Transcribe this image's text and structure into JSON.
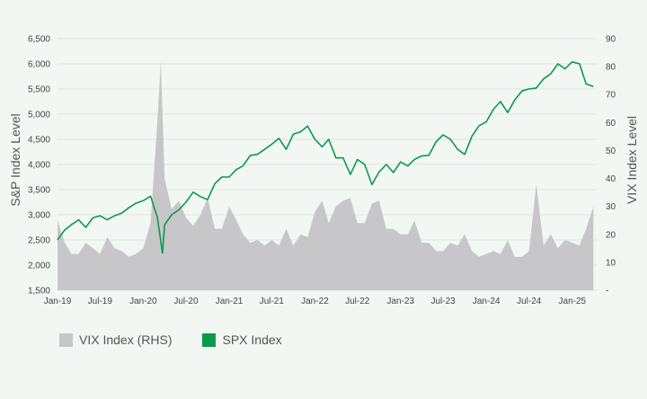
{
  "colors": {
    "background": "#f2f7f3",
    "spx": "#0a9b48",
    "vix": "#c7c7c9",
    "grid": "#dde6df"
  },
  "chart_data": {
    "type": "line",
    "title": "",
    "x_ticks": [
      "Jan-19",
      "Jul-19",
      "Jan-20",
      "Jul-20",
      "Jan-21",
      "Jul-21",
      "Jan-22",
      "Jul-22",
      "Jan-23",
      "Jul-23",
      "Jan-24",
      "Jul-24",
      "Jan-25"
    ],
    "left_axis": {
      "label": "S&P Index Level",
      "ylim": [
        1500,
        6500
      ],
      "ticks": [
        "1,500",
        "2,000",
        "2,500",
        "3,000",
        "3,500",
        "4,000",
        "4,500",
        "5,000",
        "5,500",
        "6,000",
        "6,500"
      ]
    },
    "right_axis": {
      "label": "VIX Index Level",
      "ylim": [
        0,
        90
      ],
      "ticks": [
        "-",
        "10",
        "20",
        "30",
        "40",
        "50",
        "60",
        "70",
        "80",
        "90"
      ]
    },
    "grid": true,
    "legend_position": "bottom-left",
    "series": [
      {
        "name": "VIX Index (RHS)",
        "type": "area",
        "axis": "right",
        "x": [
          "2019-01",
          "2019-02",
          "2019-03",
          "2019-04",
          "2019-05",
          "2019-06",
          "2019-07",
          "2019-08",
          "2019-09",
          "2019-10",
          "2019-11",
          "2019-12",
          "2020-01",
          "2020-02",
          "2020-03-01",
          "2020-03-16",
          "2020-04",
          "2020-05",
          "2020-06",
          "2020-07",
          "2020-08",
          "2020-09",
          "2020-10",
          "2020-11",
          "2020-12",
          "2021-01",
          "2021-02",
          "2021-03",
          "2021-04",
          "2021-05",
          "2021-06",
          "2021-07",
          "2021-08",
          "2021-09",
          "2021-10",
          "2021-11",
          "2021-12",
          "2022-01",
          "2022-02",
          "2022-03",
          "2022-04",
          "2022-05",
          "2022-06",
          "2022-07",
          "2022-08",
          "2022-09",
          "2022-10",
          "2022-11",
          "2022-12",
          "2023-01",
          "2023-02",
          "2023-03",
          "2023-04",
          "2023-05",
          "2023-06",
          "2023-07",
          "2023-08",
          "2023-09",
          "2023-10",
          "2023-11",
          "2023-12",
          "2024-01",
          "2024-02",
          "2024-03",
          "2024-04",
          "2024-05",
          "2024-06",
          "2024-07",
          "2024-08",
          "2024-09",
          "2024-10",
          "2024-11",
          "2024-12",
          "2025-01",
          "2025-02",
          "2025-03",
          "2025-04"
        ],
        "values": [
          25,
          17,
          13,
          13,
          17,
          15,
          13,
          19,
          15,
          14,
          12,
          13,
          15,
          24,
          60,
          82,
          40,
          29,
          32,
          26,
          23,
          27,
          33,
          22,
          22,
          30,
          25,
          20,
          17,
          18,
          16,
          18,
          16,
          22,
          16,
          20,
          19,
          28,
          32,
          24,
          30,
          32,
          33,
          24,
          24,
          31,
          32,
          22,
          22,
          20,
          20,
          25,
          17,
          17,
          14,
          14,
          17,
          16,
          20,
          14,
          12,
          13,
          14,
          13,
          18,
          12,
          12,
          14,
          38,
          16,
          20,
          15,
          18,
          17,
          16,
          22,
          30
        ]
      },
      {
        "name": "SPX Index",
        "type": "line",
        "axis": "left",
        "x": [
          "2019-01",
          "2019-02",
          "2019-03",
          "2019-04",
          "2019-05",
          "2019-06",
          "2019-07",
          "2019-08",
          "2019-09",
          "2019-10",
          "2019-11",
          "2019-12",
          "2020-01",
          "2020-02",
          "2020-03-01",
          "2020-03-23",
          "2020-04",
          "2020-05",
          "2020-06",
          "2020-07",
          "2020-08",
          "2020-09",
          "2020-10",
          "2020-11",
          "2020-12",
          "2021-01",
          "2021-02",
          "2021-03",
          "2021-04",
          "2021-05",
          "2021-06",
          "2021-07",
          "2021-08",
          "2021-09",
          "2021-10",
          "2021-11",
          "2021-12",
          "2022-01",
          "2022-02",
          "2022-03",
          "2022-04",
          "2022-05",
          "2022-06",
          "2022-07",
          "2022-08",
          "2022-09",
          "2022-10",
          "2022-11",
          "2022-12",
          "2023-01",
          "2023-02",
          "2023-03",
          "2023-04",
          "2023-05",
          "2023-06",
          "2023-07",
          "2023-08",
          "2023-09",
          "2023-10",
          "2023-11",
          "2023-12",
          "2024-01",
          "2024-02",
          "2024-03",
          "2024-04",
          "2024-05",
          "2024-06",
          "2024-07",
          "2024-08",
          "2024-09",
          "2024-10",
          "2024-11",
          "2024-12",
          "2025-01",
          "2025-02",
          "2025-03",
          "2025-04"
        ],
        "values": [
          2500,
          2700,
          2800,
          2900,
          2750,
          2940,
          2980,
          2900,
          2980,
          3030,
          3140,
          3230,
          3280,
          3370,
          2950,
          2240,
          2800,
          3000,
          3100,
          3250,
          3450,
          3360,
          3300,
          3620,
          3750,
          3750,
          3900,
          3970,
          4180,
          4200,
          4300,
          4400,
          4520,
          4300,
          4600,
          4650,
          4760,
          4500,
          4350,
          4500,
          4130,
          4130,
          3800,
          4100,
          4000,
          3600,
          3850,
          4000,
          3840,
          4050,
          3970,
          4100,
          4170,
          4180,
          4450,
          4590,
          4500,
          4300,
          4200,
          4560,
          4770,
          4850,
          5100,
          5250,
          5030,
          5280,
          5460,
          5500,
          5520,
          5700,
          5800,
          6000,
          5900,
          6040,
          6000,
          5600,
          5550
        ]
      }
    ]
  }
}
